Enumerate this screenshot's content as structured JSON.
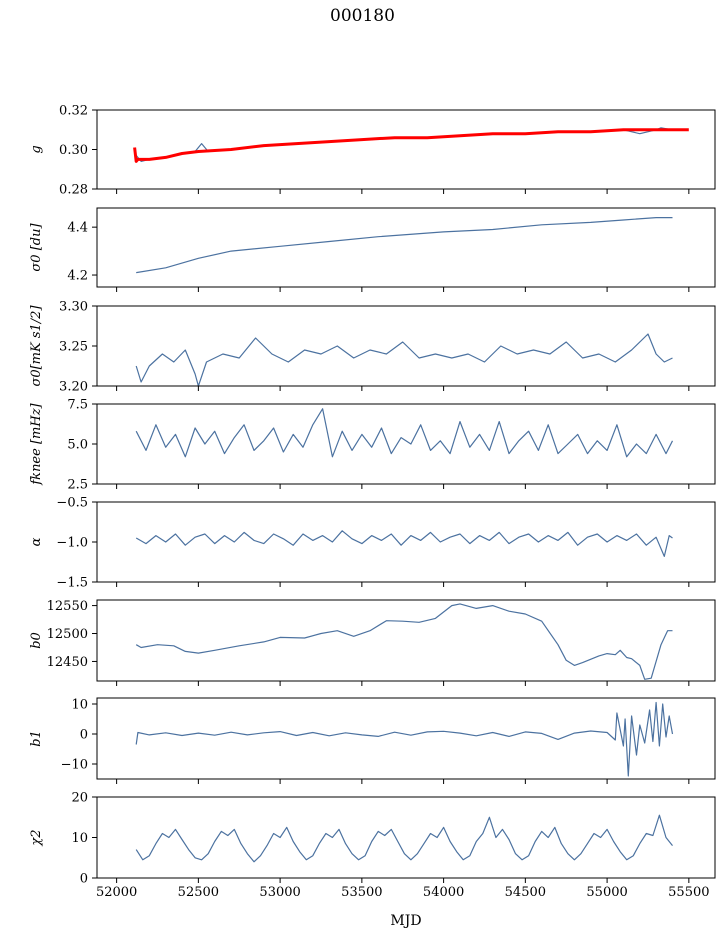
{
  "figure": {
    "title": "000180",
    "xlabel": "MJD",
    "xticks": [
      52000,
      52500,
      53000,
      53500,
      54000,
      54500,
      55000,
      55500
    ],
    "xlim": [
      51880,
      55660
    ]
  },
  "colors": {
    "series": "#4c72a0",
    "fit": "#ff0000",
    "axis": "#000000"
  },
  "chart_data": [
    {
      "type": "line",
      "ylabel": "g",
      "ylim": [
        0.28,
        0.32
      ],
      "yticks": [
        0.28,
        0.3,
        0.32
      ],
      "series": [
        {
          "color": "series",
          "x": [
            52120,
            52150,
            52200,
            52300,
            52400,
            52480,
            52520,
            52560,
            52700,
            52900,
            53100,
            53300,
            53500,
            53700,
            53900,
            54100,
            54300,
            54500,
            54700,
            54900,
            55100,
            55200,
            55300,
            55330,
            55400
          ],
          "values": [
            0.297,
            0.294,
            0.295,
            0.296,
            0.298,
            0.299,
            0.303,
            0.299,
            0.3,
            0.302,
            0.303,
            0.304,
            0.305,
            0.306,
            0.306,
            0.307,
            0.308,
            0.308,
            0.309,
            0.309,
            0.31,
            0.308,
            0.31,
            0.311,
            0.31
          ]
        },
        {
          "color": "fit",
          "x": [
            52110,
            52120,
            52130,
            52200,
            52300,
            52400,
            52500,
            52700,
            52900,
            53100,
            53300,
            53500,
            53700,
            53900,
            54100,
            54300,
            54500,
            54700,
            54900,
            55100,
            55300,
            55500
          ],
          "values": [
            0.301,
            0.294,
            0.295,
            0.295,
            0.296,
            0.298,
            0.299,
            0.3,
            0.302,
            0.303,
            0.304,
            0.305,
            0.306,
            0.306,
            0.307,
            0.308,
            0.308,
            0.309,
            0.309,
            0.31,
            0.31,
            0.31
          ]
        }
      ]
    },
    {
      "type": "line",
      "ylabel": "σ0 [du]",
      "ylim": [
        4.15,
        4.48
      ],
      "yticks": [
        4.2,
        4.4
      ],
      "series": [
        {
          "color": "series",
          "x": [
            52120,
            52300,
            52500,
            52700,
            53000,
            53300,
            53600,
            54000,
            54300,
            54600,
            54900,
            55100,
            55300,
            55400
          ],
          "values": [
            4.21,
            4.23,
            4.27,
            4.3,
            4.32,
            4.34,
            4.36,
            4.38,
            4.39,
            4.41,
            4.42,
            4.43,
            4.44,
            4.44
          ]
        }
      ]
    },
    {
      "type": "line",
      "ylabel": "σ0[mK s1/2]",
      "ylim": [
        3.2,
        3.3
      ],
      "yticks": [
        3.2,
        3.25,
        3.3
      ],
      "series": [
        {
          "color": "series",
          "x": [
            52120,
            52150,
            52200,
            52280,
            52350,
            52420,
            52480,
            52500,
            52550,
            52650,
            52750,
            52850,
            52950,
            53050,
            53150,
            53250,
            53350,
            53450,
            53550,
            53650,
            53750,
            53850,
            53950,
            54050,
            54150,
            54250,
            54350,
            54450,
            54550,
            54650,
            54750,
            54850,
            54950,
            55050,
            55150,
            55250,
            55300,
            55350,
            55400
          ],
          "values": [
            3.225,
            3.205,
            3.225,
            3.24,
            3.23,
            3.245,
            3.215,
            3.2,
            3.23,
            3.24,
            3.235,
            3.26,
            3.24,
            3.23,
            3.245,
            3.24,
            3.25,
            3.235,
            3.245,
            3.24,
            3.255,
            3.235,
            3.24,
            3.235,
            3.24,
            3.23,
            3.25,
            3.24,
            3.245,
            3.24,
            3.255,
            3.235,
            3.24,
            3.23,
            3.245,
            3.265,
            3.24,
            3.23,
            3.235
          ]
        }
      ]
    },
    {
      "type": "line",
      "ylabel": "fknee [mHz]",
      "ylim": [
        2.5,
        7.5
      ],
      "yticks": [
        2.5,
        5.0,
        7.5
      ],
      "series": [
        {
          "color": "series",
          "x": [
            52120,
            52180,
            52240,
            52300,
            52360,
            52420,
            52480,
            52540,
            52600,
            52660,
            52720,
            52780,
            52840,
            52900,
            52960,
            53020,
            53080,
            53140,
            53200,
            53260,
            53320,
            53380,
            53440,
            53500,
            53560,
            53620,
            53680,
            53740,
            53800,
            53860,
            53920,
            53980,
            54040,
            54100,
            54160,
            54220,
            54280,
            54340,
            54400,
            54460,
            54520,
            54580,
            54640,
            54700,
            54760,
            54820,
            54880,
            54940,
            55000,
            55060,
            55120,
            55180,
            55240,
            55300,
            55360,
            55400
          ],
          "values": [
            5.8,
            4.6,
            6.2,
            4.8,
            5.6,
            4.2,
            6.0,
            5.0,
            5.8,
            4.4,
            5.4,
            6.2,
            4.6,
            5.2,
            6.0,
            4.5,
            5.6,
            4.8,
            6.2,
            7.2,
            4.2,
            5.8,
            4.6,
            5.6,
            4.8,
            6.0,
            4.4,
            5.4,
            5.0,
            6.2,
            4.6,
            5.2,
            4.4,
            6.4,
            4.8,
            5.6,
            4.6,
            6.4,
            4.4,
            5.2,
            5.8,
            4.6,
            6.2,
            4.4,
            5.0,
            5.6,
            4.4,
            5.2,
            4.6,
            6.2,
            4.2,
            5.0,
            4.4,
            5.6,
            4.4,
            5.2
          ]
        }
      ]
    },
    {
      "type": "line",
      "ylabel": "α",
      "ylim": [
        -1.5,
        -0.5
      ],
      "yticks": [
        -1.5,
        -1.0,
        -0.5
      ],
      "series": [
        {
          "color": "series",
          "x": [
            52120,
            52180,
            52240,
            52300,
            52360,
            52420,
            52480,
            52540,
            52600,
            52660,
            52720,
            52780,
            52840,
            52900,
            52960,
            53020,
            53080,
            53140,
            53200,
            53260,
            53320,
            53380,
            53440,
            53500,
            53560,
            53620,
            53680,
            53740,
            53800,
            53860,
            53920,
            53980,
            54040,
            54100,
            54160,
            54220,
            54280,
            54340,
            54400,
            54460,
            54520,
            54580,
            54640,
            54700,
            54760,
            54820,
            54880,
            54940,
            55000,
            55060,
            55120,
            55180,
            55240,
            55300,
            55350,
            55380,
            55400
          ],
          "values": [
            -0.95,
            -1.02,
            -0.92,
            -1.0,
            -0.9,
            -1.04,
            -0.94,
            -0.9,
            -1.02,
            -0.92,
            -1.0,
            -0.88,
            -0.98,
            -1.02,
            -0.9,
            -0.96,
            -1.04,
            -0.9,
            -0.98,
            -0.92,
            -1.0,
            -0.86,
            -0.96,
            -1.02,
            -0.92,
            -0.98,
            -0.9,
            -1.04,
            -0.92,
            -0.98,
            -0.88,
            -1.0,
            -0.94,
            -0.9,
            -1.02,
            -0.92,
            -0.98,
            -0.88,
            -1.02,
            -0.94,
            -0.9,
            -1.0,
            -0.92,
            -0.98,
            -0.88,
            -1.04,
            -0.94,
            -0.9,
            -1.0,
            -0.92,
            -0.98,
            -0.9,
            -1.04,
            -0.94,
            -1.18,
            -0.92,
            -0.95
          ]
        }
      ]
    },
    {
      "type": "line",
      "ylabel": "b0",
      "ylim": [
        12415,
        12560
      ],
      "yticks": [
        12450,
        12500,
        12550
      ],
      "series": [
        {
          "color": "series",
          "x": [
            52120,
            52150,
            52250,
            52350,
            52420,
            52500,
            52600,
            52750,
            52900,
            53000,
            53150,
            53250,
            53350,
            53450,
            53550,
            53650,
            53750,
            53850,
            53950,
            54050,
            54100,
            54200,
            54300,
            54400,
            54500,
            54600,
            54700,
            54750,
            54800,
            54850,
            54950,
            55000,
            55050,
            55080,
            55120,
            55150,
            55200,
            55230,
            55270,
            55300,
            55330,
            55370,
            55400
          ],
          "values": [
            12480,
            12475,
            12480,
            12478,
            12468,
            12465,
            12470,
            12478,
            12485,
            12493,
            12492,
            12500,
            12505,
            12495,
            12505,
            12523,
            12522,
            12520,
            12527,
            12550,
            12553,
            12545,
            12550,
            12540,
            12535,
            12522,
            12480,
            12452,
            12443,
            12448,
            12460,
            12464,
            12462,
            12470,
            12457,
            12455,
            12443,
            12418,
            12420,
            12450,
            12480,
            12505,
            12505
          ]
        }
      ]
    },
    {
      "type": "line",
      "ylabel": "b1",
      "ylim": [
        -15,
        12
      ],
      "yticks": [
        -10,
        0,
        10
      ],
      "series": [
        {
          "color": "series",
          "x": [
            52120,
            52130,
            52200,
            52300,
            52400,
            52500,
            52600,
            52700,
            52800,
            52900,
            53000,
            53100,
            53200,
            53300,
            53400,
            53500,
            53600,
            53700,
            53800,
            53900,
            54000,
            54100,
            54200,
            54300,
            54400,
            54500,
            54600,
            54700,
            54800,
            54900,
            55000,
            55050,
            55060,
            55100,
            55110,
            55130,
            55150,
            55180,
            55200,
            55230,
            55260,
            55280,
            55300,
            55320,
            55340,
            55360,
            55380,
            55400
          ],
          "values": [
            -3.5,
            0.5,
            -0.3,
            0.4,
            -0.5,
            0.3,
            -0.4,
            0.6,
            -0.3,
            0.4,
            0.8,
            -0.5,
            0.5,
            -0.6,
            0.4,
            -0.3,
            -0.8,
            0.6,
            -0.4,
            0.7,
            0.9,
            0.3,
            -0.6,
            0.5,
            -0.8,
            0.7,
            0.2,
            -1.8,
            0.3,
            1.0,
            0.5,
            -2.0,
            7.0,
            -4.0,
            5.0,
            -14.0,
            6.0,
            -7.0,
            3.0,
            -3.0,
            8.0,
            -2.5,
            10.5,
            -4.0,
            10.0,
            -1.0,
            6.0,
            0.0
          ]
        }
      ]
    },
    {
      "type": "line",
      "ylabel": "χ2",
      "ylim": [
        0,
        20
      ],
      "yticks": [
        0,
        10,
        20
      ],
      "series": [
        {
          "color": "series",
          "x": [
            52120,
            52160,
            52200,
            52240,
            52280,
            52320,
            52360,
            52400,
            52440,
            52480,
            52520,
            52560,
            52600,
            52640,
            52680,
            52720,
            52760,
            52800,
            52840,
            52880,
            52920,
            52960,
            53000,
            53040,
            53080,
            53120,
            53160,
            53200,
            53240,
            53280,
            53320,
            53360,
            53400,
            53440,
            53480,
            53520,
            53560,
            53600,
            53640,
            53680,
            53720,
            53760,
            53800,
            53840,
            53880,
            53920,
            53960,
            54000,
            54040,
            54080,
            54120,
            54160,
            54200,
            54240,
            54280,
            54320,
            54360,
            54400,
            54440,
            54480,
            54520,
            54560,
            54600,
            54640,
            54680,
            54720,
            54760,
            54800,
            54840,
            54880,
            54920,
            54960,
            55000,
            55040,
            55080,
            55120,
            55160,
            55200,
            55240,
            55280,
            55320,
            55360,
            55400
          ],
          "values": [
            7.0,
            4.5,
            5.5,
            8.5,
            11.0,
            10.0,
            12.0,
            9.5,
            7.0,
            5.0,
            4.5,
            6.0,
            9.0,
            11.5,
            10.5,
            12.0,
            8.5,
            6.0,
            4.0,
            5.5,
            8.0,
            11.0,
            10.0,
            12.5,
            9.0,
            6.5,
            4.5,
            5.5,
            8.5,
            11.0,
            10.0,
            12.0,
            8.5,
            6.0,
            4.5,
            5.5,
            9.0,
            11.5,
            10.5,
            12.0,
            9.0,
            6.0,
            4.5,
            6.0,
            8.5,
            11.0,
            10.0,
            12.5,
            9.0,
            6.5,
            4.5,
            5.5,
            9.0,
            11.0,
            15.0,
            10.0,
            12.0,
            9.5,
            6.0,
            4.5,
            5.5,
            9.0,
            11.5,
            10.0,
            12.5,
            8.5,
            6.0,
            4.5,
            6.0,
            8.5,
            11.0,
            10.0,
            12.0,
            9.0,
            6.5,
            4.5,
            5.5,
            8.5,
            11.0,
            10.5,
            15.5,
            10.0,
            8.0
          ]
        }
      ]
    }
  ]
}
